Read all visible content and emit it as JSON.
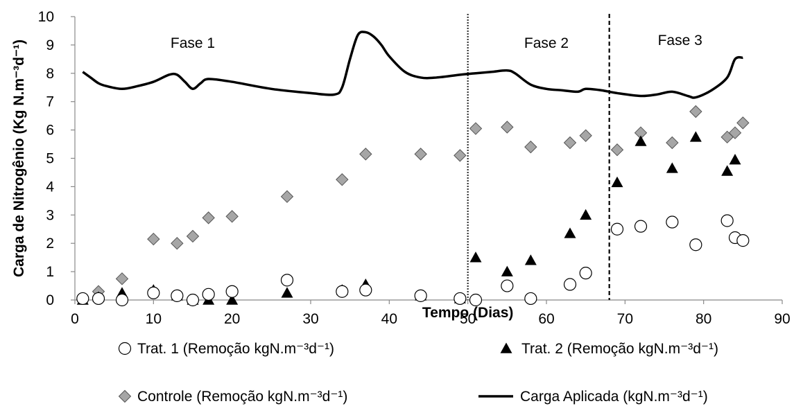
{
  "chart_data": {
    "type": "scatter",
    "xlabel": "Tempo (Dias)",
    "ylabel": "Carga de Nitrogênio (Kg N.m⁻³d⁻¹)",
    "xlim": [
      0,
      90
    ],
    "ylim": [
      0,
      10
    ],
    "x_ticks": [
      "0",
      "10",
      "20",
      "30",
      "40",
      "50",
      "60",
      "70",
      "80",
      "90"
    ],
    "y_ticks": [
      "0",
      "1",
      "2",
      "3",
      "4",
      "5",
      "6",
      "7",
      "8",
      "9",
      "10"
    ],
    "grid": false,
    "legend_position": "bottom",
    "annotations": [
      {
        "text": "Fase 1",
        "x": 15,
        "y": 8.9
      },
      {
        "text": "Fase 2",
        "x": 60,
        "y": 8.9
      },
      {
        "text": "Fase 3",
        "x": 77,
        "y": 9.0
      }
    ],
    "phase_lines": [
      {
        "x": 50,
        "style": "dotted"
      },
      {
        "x": 68,
        "style": "dashed"
      }
    ],
    "series": [
      {
        "name": "Trat. 1 (Remoção kgN.m⁻³d⁻¹)",
        "marker": "circle-open",
        "x": [
          1,
          3,
          6,
          10,
          13,
          15,
          17,
          20,
          27,
          34,
          37,
          44,
          49,
          51,
          55,
          58,
          63,
          65,
          69,
          72,
          76,
          79,
          83,
          84,
          85
        ],
        "y": [
          0.05,
          0.05,
          0.0,
          0.25,
          0.15,
          0.0,
          0.2,
          0.3,
          0.7,
          0.3,
          0.35,
          0.15,
          0.05,
          0.0,
          0.5,
          0.05,
          0.55,
          0.95,
          2.5,
          2.6,
          2.75,
          1.95,
          2.8,
          2.2,
          2.1
        ]
      },
      {
        "name": "Trat. 2 (Remoção kgN.m⁻³d⁻¹)",
        "marker": "triangle-filled",
        "x": [
          1,
          3,
          6,
          10,
          13,
          15,
          17,
          20,
          27,
          34,
          37,
          44,
          49,
          51,
          55,
          58,
          63,
          65,
          69,
          72,
          76,
          79,
          83,
          84
        ],
        "y": [
          0.0,
          0.1,
          0.25,
          0.35,
          0.15,
          0.0,
          0.0,
          0.0,
          0.25,
          0.35,
          0.55,
          0.15,
          0.05,
          1.5,
          1.0,
          1.4,
          2.35,
          3.0,
          4.15,
          5.6,
          4.65,
          5.75,
          4.55,
          4.95
        ]
      },
      {
        "name": "Controle (Remoção kgN.m⁻³d⁻¹)",
        "marker": "diamond-filled",
        "x": [
          1,
          3,
          6,
          10,
          13,
          15,
          17,
          20,
          27,
          34,
          37,
          44,
          49,
          51,
          55,
          58,
          63,
          65,
          69,
          72,
          76,
          79,
          83,
          84,
          85
        ],
        "y": [
          0.05,
          0.3,
          0.75,
          2.15,
          2.0,
          2.25,
          2.9,
          2.95,
          3.65,
          4.25,
          5.15,
          5.15,
          5.1,
          6.05,
          6.1,
          5.4,
          5.55,
          5.8,
          5.3,
          5.9,
          5.55,
          6.65,
          5.75,
          5.9,
          6.25
        ]
      },
      {
        "name": "Carga Aplicada (kgN.m⁻³d⁻¹)",
        "marker": "line",
        "x": [
          1,
          2,
          3,
          4,
          6,
          8,
          10,
          12,
          13,
          14,
          15,
          16,
          17,
          20,
          25,
          30,
          33,
          34,
          35,
          36,
          37,
          38,
          39,
          40,
          42,
          44,
          46,
          49,
          51,
          53,
          55,
          56,
          58,
          60,
          62,
          64,
          65,
          67,
          69,
          72,
          74,
          76,
          78,
          79,
          81,
          83,
          84,
          85
        ],
        "y": [
          8.05,
          7.85,
          7.65,
          7.55,
          7.45,
          7.55,
          7.7,
          7.95,
          7.95,
          7.7,
          7.45,
          7.65,
          7.8,
          7.7,
          7.45,
          7.3,
          7.25,
          7.5,
          8.5,
          9.35,
          9.45,
          9.3,
          9.0,
          8.6,
          8.05,
          7.85,
          7.85,
          7.95,
          8.0,
          8.05,
          8.1,
          8.0,
          7.6,
          7.45,
          7.4,
          7.35,
          7.45,
          7.4,
          7.3,
          7.2,
          7.25,
          7.35,
          7.2,
          7.15,
          7.4,
          7.85,
          8.5,
          8.55
        ]
      }
    ]
  }
}
